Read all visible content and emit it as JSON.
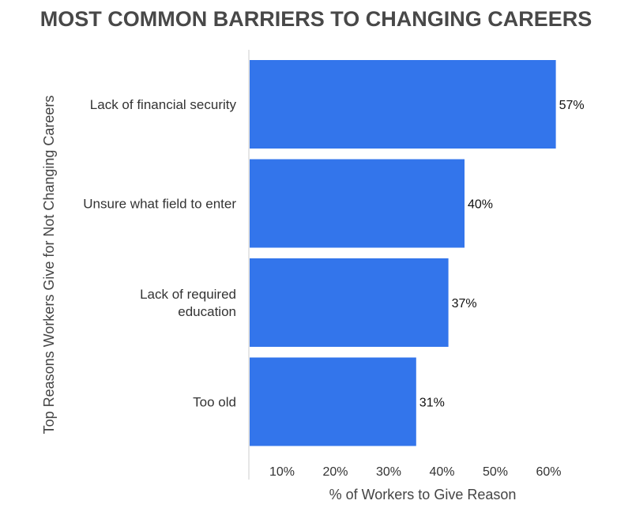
{
  "chart_data": {
    "type": "bar",
    "orientation": "horizontal",
    "title": "MOST COMMON BARRIERS TO CHANGING CAREERS",
    "xlabel": "% of Workers to Give Reason",
    "ylabel": "Top Reasons Workers Give for Not Changing Careers",
    "categories": [
      [
        "Lack of financial security"
      ],
      [
        "Unsure what field to enter"
      ],
      [
        "Lack of required",
        "education"
      ],
      [
        "Too old"
      ]
    ],
    "values": [
      57,
      40,
      37,
      31
    ],
    "value_labels": [
      "57%",
      "40%",
      "37%",
      "31%"
    ],
    "xticks": [
      "10%",
      "20%",
      "30%",
      "40%",
      "50%",
      "60%"
    ],
    "xlim": [
      0,
      60
    ],
    "bar_color": "#3375eb",
    "grid": false
  }
}
